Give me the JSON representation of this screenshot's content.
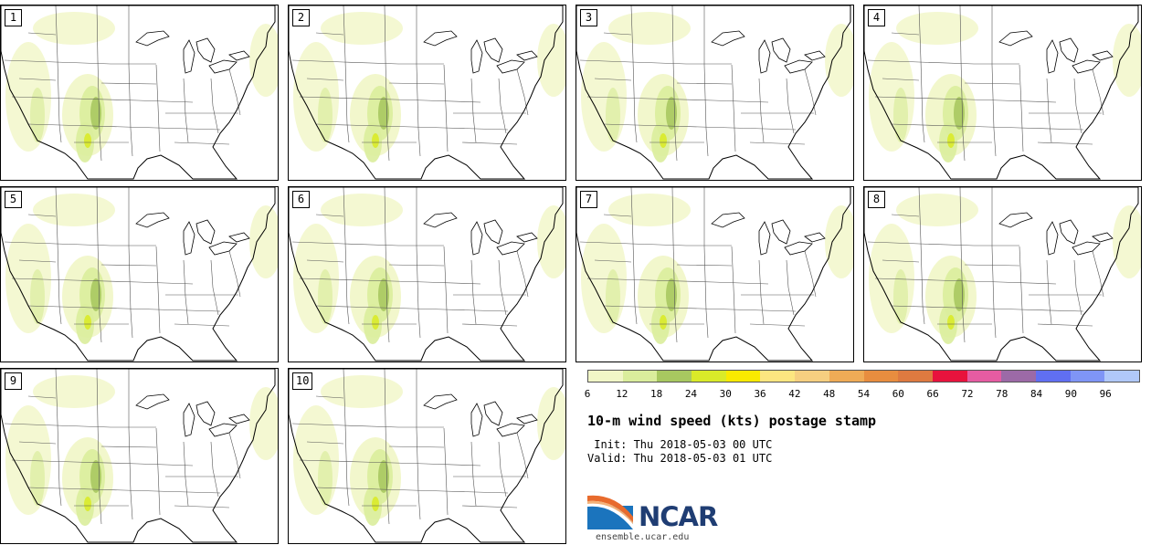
{
  "panels": [
    {
      "member": "1"
    },
    {
      "member": "2"
    },
    {
      "member": "3"
    },
    {
      "member": "4"
    },
    {
      "member": "5"
    },
    {
      "member": "6"
    },
    {
      "member": "7"
    },
    {
      "member": "8"
    },
    {
      "member": "9"
    },
    {
      "member": "10"
    }
  ],
  "colorbar": {
    "colors": [
      "#f1f6c7",
      "#daed9c",
      "#a8c860",
      "#d9ea29",
      "#f9e900",
      "#fde680",
      "#f6cf80",
      "#efab56",
      "#e88d3f",
      "#de7a40",
      "#e8133d",
      "#e65ca2",
      "#9c6aa7",
      "#606ff2",
      "#7f95f6",
      "#b0c8f9"
    ],
    "ticks": [
      "6",
      "12",
      "18",
      "24",
      "30",
      "36",
      "42",
      "48",
      "54",
      "60",
      "66",
      "72",
      "78",
      "84",
      "90",
      "96"
    ]
  },
  "title": "10-m wind speed (kts) postage stamp",
  "init_text": " Init: Thu 2018-05-03 00 UTC",
  "valid_text": "Valid: Thu 2018-05-03 01 UTC",
  "logo": {
    "wordmark": "NCAR",
    "url": "ensemble.ucar.edu"
  }
}
